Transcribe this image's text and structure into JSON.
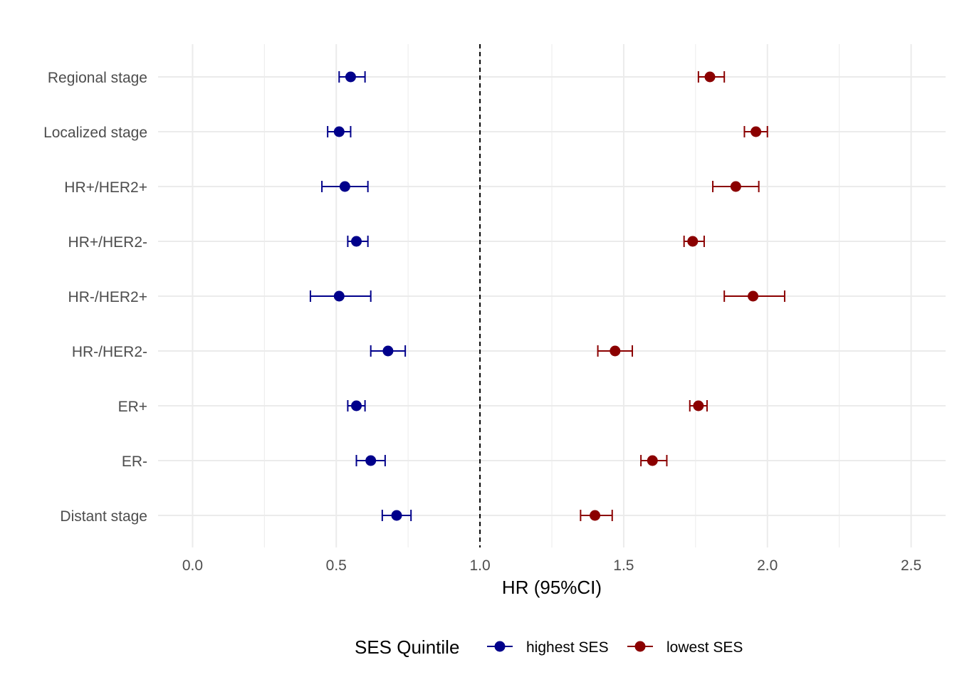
{
  "chart_data": {
    "type": "scatter",
    "subtype": "forest-plot",
    "xlabel": "HR (95%CI)",
    "xlim": [
      -0.12,
      2.62
    ],
    "x_ticks": [
      0.0,
      0.5,
      1.0,
      1.5,
      2.0,
      2.5
    ],
    "x_tick_labels": [
      "0.0",
      "0.5",
      "1.0",
      "1.5",
      "2.0",
      "2.5"
    ],
    "reference_line": {
      "x": 1.0,
      "style": "dashed",
      "color": "#000000"
    },
    "grid": true,
    "categories": [
      "Regional stage",
      "Localized stage",
      "HR+/HER2+",
      "HR+/HER2-",
      "HR-/HER2+",
      "HR-/HER2-",
      "ER+",
      "ER-",
      "Distant stage"
    ],
    "legend": {
      "title": "SES Quintile",
      "position": "bottom"
    },
    "series": [
      {
        "name": "highest SES",
        "color": "#00008b",
        "points": [
          {
            "category": "Regional stage",
            "hr": 0.55,
            "lower": 0.51,
            "upper": 0.6
          },
          {
            "category": "Localized stage",
            "hr": 0.51,
            "lower": 0.47,
            "upper": 0.55
          },
          {
            "category": "HR+/HER2+",
            "hr": 0.53,
            "lower": 0.45,
            "upper": 0.61
          },
          {
            "category": "HR+/HER2-",
            "hr": 0.57,
            "lower": 0.54,
            "upper": 0.61
          },
          {
            "category": "HR-/HER2+",
            "hr": 0.51,
            "lower": 0.41,
            "upper": 0.62
          },
          {
            "category": "HR-/HER2-",
            "hr": 0.68,
            "lower": 0.62,
            "upper": 0.74
          },
          {
            "category": "ER+",
            "hr": 0.57,
            "lower": 0.54,
            "upper": 0.6
          },
          {
            "category": "ER-",
            "hr": 0.62,
            "lower": 0.57,
            "upper": 0.67
          },
          {
            "category": "Distant stage",
            "hr": 0.71,
            "lower": 0.66,
            "upper": 0.76
          }
        ]
      },
      {
        "name": "lowest SES",
        "color": "#8b0000",
        "points": [
          {
            "category": "Regional stage",
            "hr": 1.8,
            "lower": 1.76,
            "upper": 1.85
          },
          {
            "category": "Localized stage",
            "hr": 1.96,
            "lower": 1.92,
            "upper": 2.0
          },
          {
            "category": "HR+/HER2+",
            "hr": 1.89,
            "lower": 1.81,
            "upper": 1.97
          },
          {
            "category": "HR+/HER2-",
            "hr": 1.74,
            "lower": 1.71,
            "upper": 1.78
          },
          {
            "category": "HR-/HER2+",
            "hr": 1.95,
            "lower": 1.85,
            "upper": 2.06
          },
          {
            "category": "HR-/HER2-",
            "hr": 1.47,
            "lower": 1.41,
            "upper": 1.53
          },
          {
            "category": "ER+",
            "hr": 1.76,
            "lower": 1.73,
            "upper": 1.79
          },
          {
            "category": "ER-",
            "hr": 1.6,
            "lower": 1.56,
            "upper": 1.65
          },
          {
            "category": "Distant stage",
            "hr": 1.4,
            "lower": 1.35,
            "upper": 1.46
          }
        ]
      }
    ]
  }
}
